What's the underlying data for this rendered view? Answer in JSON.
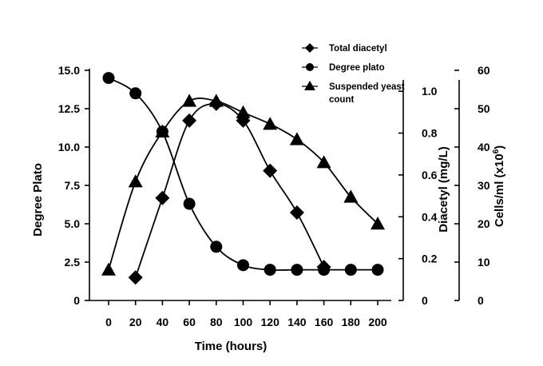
{
  "chart_data": {
    "type": "line",
    "x": [
      0,
      20,
      40,
      60,
      80,
      100,
      120,
      140,
      160,
      180,
      200
    ],
    "xlabel": "Time (hours)",
    "x_ticks": [
      "0",
      "20",
      "40",
      "60",
      "80",
      "100",
      "120",
      "140",
      "160",
      "180",
      "200"
    ],
    "axes": {
      "left": {
        "label": "Degree Plato",
        "range": [
          0,
          15
        ],
        "ticks": [
          "0",
          "2.5",
          "5.0",
          "7.5",
          "10.0",
          "12.5",
          "15.0"
        ]
      },
      "right1": {
        "label": "Diacetyl (mg/L)",
        "range": [
          0,
          1.1
        ],
        "ticks": [
          "0",
          "0.2",
          "0.4",
          "0.6",
          "0.8",
          "1.0"
        ]
      },
      "right2": {
        "label": "Cells/ml (x10",
        "label_sup": "6",
        "label_end": ")",
        "range": [
          0,
          60
        ],
        "ticks": [
          "0",
          "10",
          "20",
          "30",
          "40",
          "50",
          "60"
        ]
      }
    },
    "series": [
      {
        "name": "Total diacetyl",
        "axis": "right1",
        "marker": "diamond",
        "x": [
          20,
          40,
          60,
          80,
          100,
          120,
          140,
          160
        ],
        "values": [
          0.11,
          0.49,
          0.86,
          0.94,
          0.86,
          0.62,
          0.42,
          0.16
        ]
      },
      {
        "name": "Degree plato",
        "axis": "left",
        "marker": "circle",
        "x": [
          0,
          20,
          40,
          60,
          80,
          100,
          120,
          140,
          160,
          180,
          200
        ],
        "values": [
          14.5,
          13.5,
          11.0,
          6.3,
          3.5,
          2.3,
          2.0,
          2.0,
          2.0,
          2.0,
          2.0
        ]
      },
      {
        "name": "Suspended yeast count",
        "axis": "right2",
        "marker": "triangle",
        "x": [
          0,
          20,
          40,
          60,
          80,
          100,
          120,
          140,
          160,
          180,
          200
        ],
        "values": [
          8,
          31,
          44,
          52,
          52,
          49,
          46,
          42,
          36,
          27,
          20
        ]
      }
    ],
    "legend": {
      "position": "top-right",
      "entries": [
        {
          "lines": [
            "Total diacetyl"
          ],
          "marker": "diamond"
        },
        {
          "lines": [
            "Degree plato"
          ],
          "marker": "circle"
        },
        {
          "lines": [
            "Suspended yeast",
            "count"
          ],
          "marker": "triangle"
        }
      ]
    }
  }
}
